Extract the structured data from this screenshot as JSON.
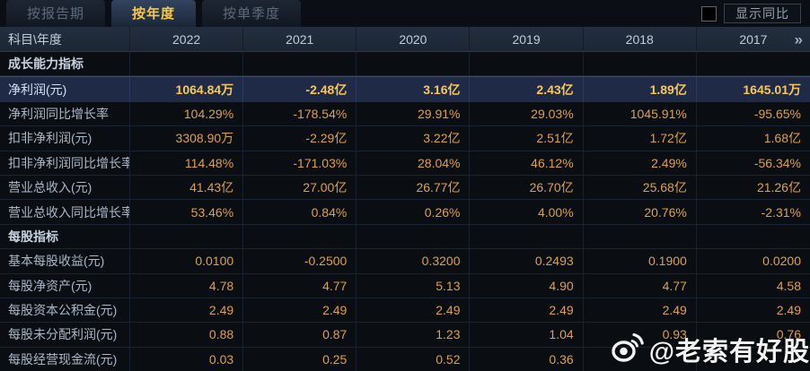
{
  "tabs": [
    {
      "label": "按报告期",
      "active": false
    },
    {
      "label": "按年度",
      "active": true
    },
    {
      "label": "按单季度",
      "active": false
    }
  ],
  "controls": {
    "show_yoy_label": "显示同比",
    "checkbox_checked": false
  },
  "table": {
    "corner_header": "科目\\年度",
    "year_columns": [
      "2022",
      "2021",
      "2020",
      "2019",
      "2018",
      "2017"
    ],
    "more_icon": "»",
    "rows": [
      {
        "type": "section",
        "label": "成长能力指标",
        "values": [
          "",
          "",
          "",
          "",
          "",
          ""
        ]
      },
      {
        "type": "highlight",
        "label": "净利润(元)",
        "values": [
          "1064.84万",
          "-2.48亿",
          "3.16亿",
          "2.43亿",
          "1.89亿",
          "1645.01万"
        ]
      },
      {
        "type": "data",
        "label": "净利润同比增长率",
        "values": [
          "104.29%",
          "-178.54%",
          "29.91%",
          "29.03%",
          "1045.91%",
          "-95.65%"
        ]
      },
      {
        "type": "data",
        "label": "扣非净利润(元)",
        "values": [
          "3308.90万",
          "-2.29亿",
          "3.22亿",
          "2.51亿",
          "1.72亿",
          "1.68亿"
        ]
      },
      {
        "type": "data",
        "label": "扣非净利润同比增长率",
        "values": [
          "114.48%",
          "-171.03%",
          "28.04%",
          "46.12%",
          "2.49%",
          "-56.34%"
        ]
      },
      {
        "type": "data",
        "label": "营业总收入(元)",
        "values": [
          "41.43亿",
          "27.00亿",
          "26.77亿",
          "26.70亿",
          "25.68亿",
          "21.26亿"
        ]
      },
      {
        "type": "data",
        "label": "营业总收入同比增长率",
        "values": [
          "53.46%",
          "0.84%",
          "0.26%",
          "4.00%",
          "20.76%",
          "-2.31%"
        ]
      },
      {
        "type": "section",
        "label": "每股指标",
        "values": [
          "",
          "",
          "",
          "",
          "",
          ""
        ]
      },
      {
        "type": "data",
        "label": "基本每股收益(元)",
        "values": [
          "0.0100",
          "-0.2500",
          "0.3200",
          "0.2493",
          "0.1900",
          "0.0200"
        ]
      },
      {
        "type": "data",
        "label": "每股净资产(元)",
        "values": [
          "4.78",
          "4.77",
          "5.13",
          "4.90",
          "4.77",
          "4.58"
        ]
      },
      {
        "type": "data",
        "label": "每股资本公积金(元)",
        "values": [
          "2.49",
          "2.49",
          "2.49",
          "2.49",
          "2.49",
          "2.49"
        ]
      },
      {
        "type": "data",
        "label": "每股未分配利润(元)",
        "values": [
          "0.88",
          "0.87",
          "1.23",
          "1.04",
          "0.93",
          "0.76"
        ]
      },
      {
        "type": "data",
        "label": "每股经营现金流(元)",
        "values": [
          "0.03",
          "0.25",
          "0.52",
          "0.36",
          "",
          ""
        ]
      }
    ]
  },
  "watermark": {
    "icon": "weibo-logo",
    "text": "@老索有好股"
  },
  "colors": {
    "accent_gold": "#f8c842",
    "value_gold": "#dda04b",
    "highlight_row_bg": "#1f2b46",
    "header_bg": "#202b3b",
    "page_bg": "#0a0d12"
  }
}
